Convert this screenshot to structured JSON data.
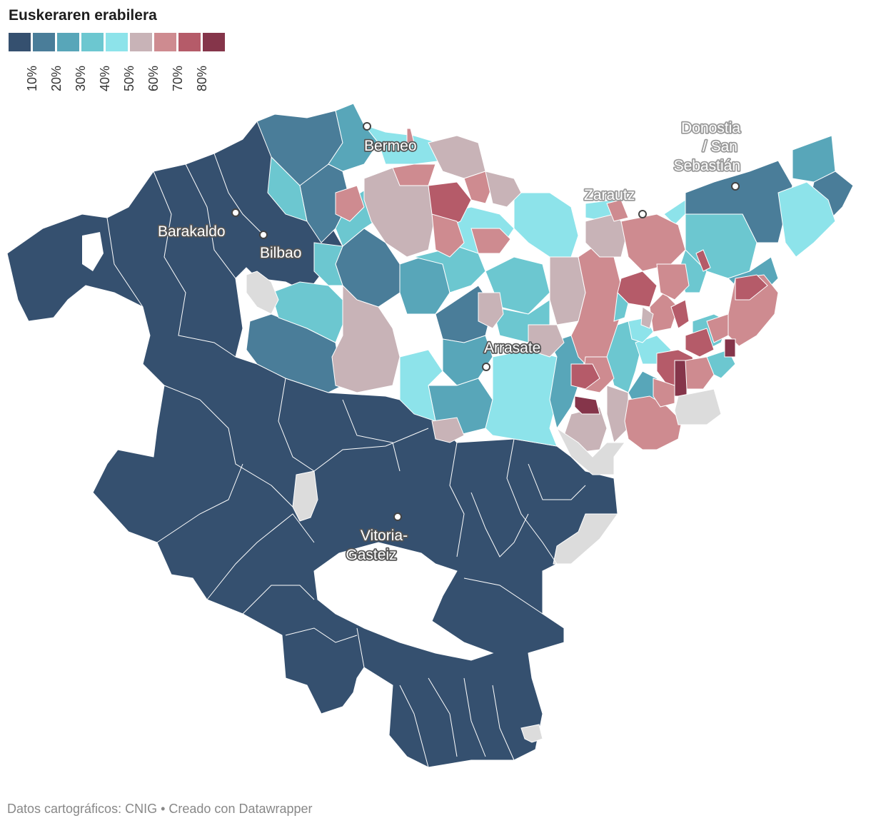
{
  "title": "Euskeraren erabilera",
  "legend": {
    "colors": [
      "#35506f",
      "#4a7d99",
      "#58a6b9",
      "#6cc7d0",
      "#8de3ea",
      "#c8b3b7",
      "#ce8b90",
      "#b55b69",
      "#85354a"
    ],
    "ticks": [
      "10%",
      "20%",
      "30%",
      "40%",
      "50%",
      "60%",
      "70%",
      "80%"
    ]
  },
  "colors": {
    "no_data": "#dcdcdc",
    "border": "#ffffff"
  },
  "cities": [
    {
      "name": "Bermeo",
      "label": "Bermeo"
    },
    {
      "name": "Barakaldo",
      "label": "Barakaldo"
    },
    {
      "name": "Bilbao",
      "label": "Bilbao"
    },
    {
      "name": "Donostia",
      "label_lines": [
        "Donostia",
        "/ San",
        "Sebastián"
      ]
    },
    {
      "name": "Zarautz",
      "label": "Zarautz"
    },
    {
      "name": "Arrasate",
      "label": "Arrasate"
    },
    {
      "name": "Vitoria",
      "label_lines": [
        "Vitoria-",
        "Gasteiz"
      ]
    }
  ],
  "footer": {
    "source": "Datos cartográficos: CNIG",
    "credit": "• Creado con Datawrapper"
  }
}
